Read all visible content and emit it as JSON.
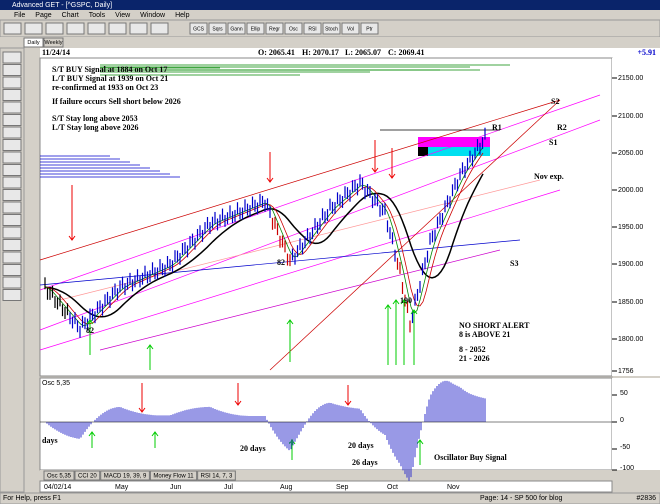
{
  "window": {
    "title": "Advanced GET - [^GSPC, Daily]"
  },
  "menu": [
    "File",
    "Page",
    "Chart",
    "Tools",
    "View",
    "Window",
    "Help"
  ],
  "toolbar": [
    "GCS",
    "Sqrs",
    "Gann",
    "Ellip",
    "Regr",
    "Osc",
    "RSI",
    "Stoch",
    "Vol",
    "Ptr"
  ],
  "tabs": [
    "Daily",
    "Weekly"
  ],
  "header": {
    "date": "11/24/14",
    "open": "O: 2065.41",
    "high": "H: 2070.17",
    "low": "L: 2065.07",
    "close": "C: 2069.41",
    "change": "+5.91"
  },
  "notes": [
    "S/T BUY Signal at 1884 on Oct 17",
    "L/T BUY Signal at 1939 on Oct 21",
    "re-confirmed at 1933 on Oct 23",
    "If failure occurs Sell short below 2026",
    "S/T Stay long above 2053",
    "L/T Stay long above 2026"
  ],
  "labels": [
    "R1",
    "R2",
    "S1",
    "S2",
    "S3",
    "Nov exp.",
    "82",
    "82",
    "190",
    "NO SHORT ALERT",
    "8 is ABOVE 21",
    "8  -  2052",
    "21  -  2026"
  ],
  "price_axis": [
    "2150.00",
    "2100.00",
    "2050.00",
    "2000.00",
    "1950.00",
    "1900.00",
    "1850.00",
    "1800.00",
    "1756"
  ],
  "osc_title": "Osc 5,35",
  "osc_axis": [
    "50",
    "0",
    "-50",
    "-100"
  ],
  "osc_notes": [
    "days",
    "20 days",
    "20 days",
    "26 days",
    "Oscillator Buy Signal"
  ],
  "indicator_tabs": [
    "Osc 5,35",
    "CCI 20",
    "MACD 19, 39, 9",
    "Money Flow 11",
    "RSI 14, 7, 3"
  ],
  "dates": [
    "04/02/14",
    "May",
    "Jun",
    "Jul",
    "Aug",
    "Sep",
    "Oct",
    "Nov"
  ],
  "status": {
    "help": "For Help, press F1",
    "page": "Page: 14 - SP 500 for blog",
    "id": "#2836"
  }
}
